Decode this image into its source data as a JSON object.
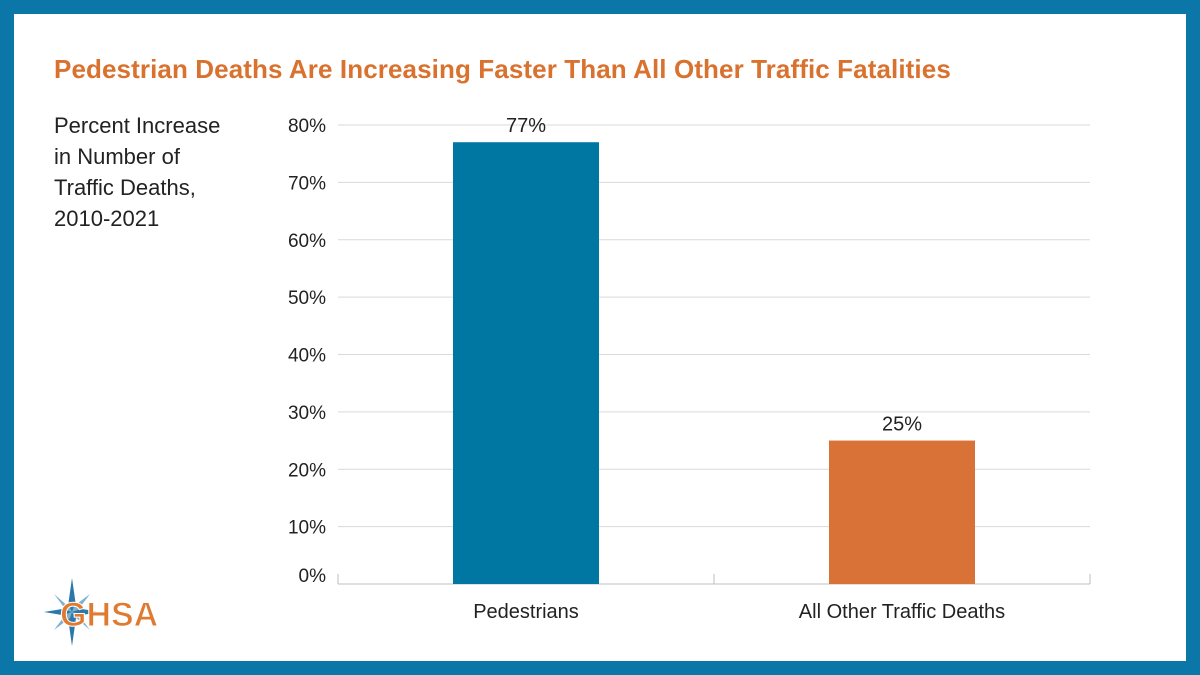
{
  "page": {
    "title": "Pedestrian Deaths Are Increasing Faster Than All Other Traffic Fatalities",
    "y_label_lines": [
      "Percent Increase",
      "in Number of",
      "Traffic Deaths,",
      "2010-2021"
    ]
  },
  "logo": {
    "text": "GHSA"
  },
  "colors": {
    "frame": "#0b76a8",
    "title": "#d9722f",
    "logo_orange": "#e07a30",
    "logo_blue": "#2a79a8"
  },
  "chart_data": {
    "type": "bar",
    "title": "Pedestrian Deaths Are Increasing Faster Than All Other Traffic Fatalities",
    "ylabel": "Percent Increase in Number of Traffic Deaths, 2010-2021",
    "xlabel": "",
    "categories": [
      "Pedestrians",
      "All Other Traffic Deaths"
    ],
    "values": [
      77,
      25
    ],
    "data_labels": [
      "77%",
      "25%"
    ],
    "bar_colors": [
      "#0076a3",
      "#d97236"
    ],
    "ylim": [
      0,
      80
    ],
    "yticks": [
      0,
      10,
      20,
      30,
      40,
      50,
      60,
      70,
      80
    ],
    "ytick_labels": [
      "0%",
      "10%",
      "20%",
      "30%",
      "40%",
      "50%",
      "60%",
      "70%",
      "80%"
    ],
    "grid": true,
    "legend": "none"
  }
}
